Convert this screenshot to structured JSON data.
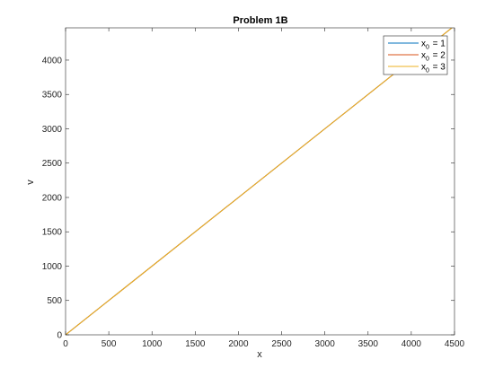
{
  "chart_data": {
    "type": "line",
    "title": "Problem 1B",
    "xlabel": "x",
    "ylabel": "v",
    "xlim": [
      0,
      4500
    ],
    "ylim": [
      0,
      4470
    ],
    "xticks": [
      0,
      500,
      1000,
      1500,
      2000,
      2500,
      3000,
      3500,
      4000,
      4500
    ],
    "yticks": [
      0,
      500,
      1000,
      1500,
      2000,
      2500,
      3000,
      3500,
      4000
    ],
    "grid": false,
    "legend_position": "top-right",
    "series": [
      {
        "name_base": "x",
        "name_sub": "0",
        "name_value": "= 1",
        "color": "#0072BD",
        "x": [
          0,
          4500
        ],
        "y": [
          0,
          4500
        ]
      },
      {
        "name_base": "x",
        "name_sub": "0",
        "name_value": "= 2",
        "color": "#D95319",
        "x": [
          0,
          4500
        ],
        "y": [
          0,
          4500
        ]
      },
      {
        "name_base": "x",
        "name_sub": "0",
        "name_value": "= 3",
        "color": "#EDB120",
        "x": [
          0,
          4500
        ],
        "y": [
          0,
          4500
        ]
      }
    ]
  }
}
